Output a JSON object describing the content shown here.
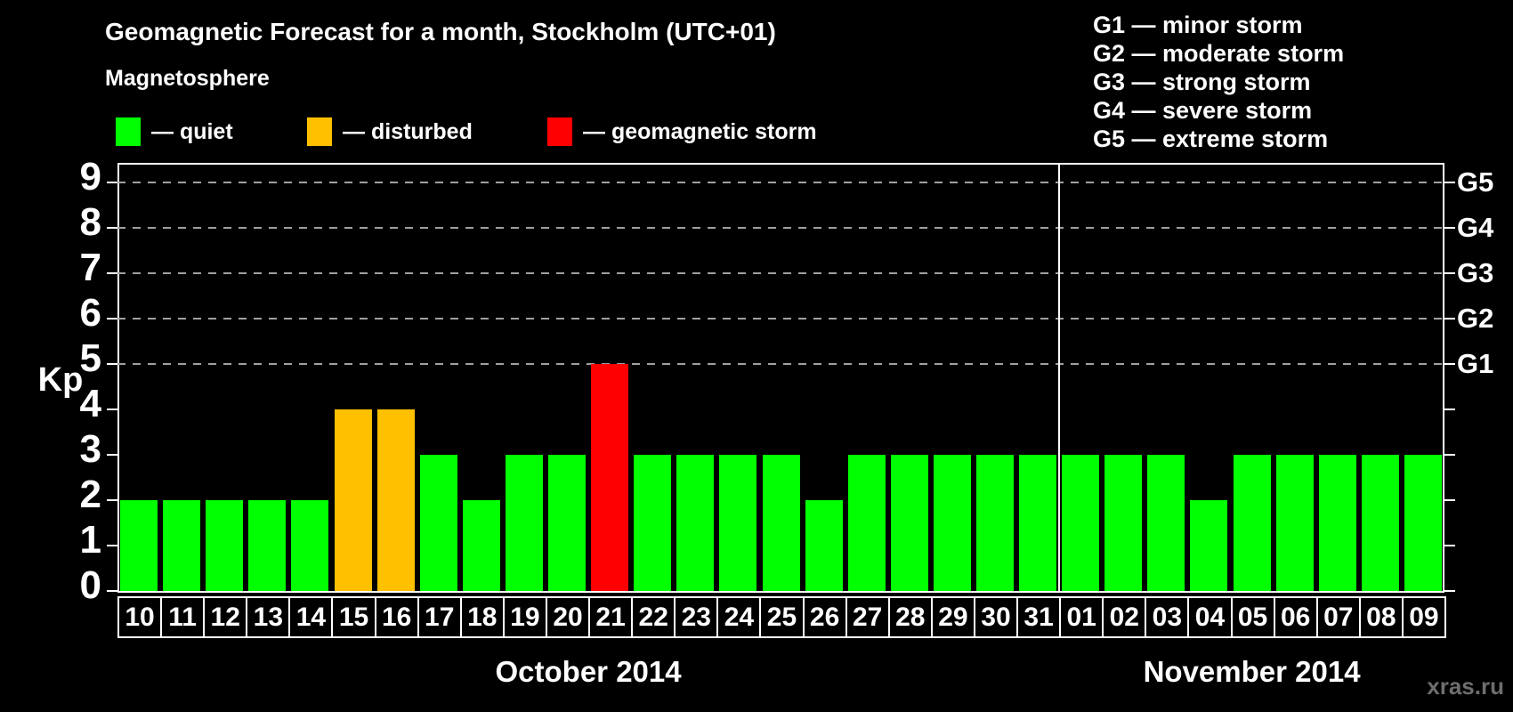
{
  "title": "Geomagnetic Forecast for a month, Stockholm (UTC+01)",
  "watermark": "xras.ru",
  "legend": {
    "heading": "Magnetosphere",
    "items": [
      {
        "key": "quiet",
        "label": "— quiet",
        "color": "#00ff00"
      },
      {
        "key": "disturbed",
        "label": "— disturbed",
        "color": "#ffc000"
      },
      {
        "key": "storm",
        "label": "— geomagnetic storm",
        "color": "#ff0000"
      }
    ]
  },
  "g_legend": [
    "G1 — minor storm",
    "G2 — moderate storm",
    "G3 — strong storm",
    "G4 — severe storm",
    "G5 — extreme storm"
  ],
  "axes": {
    "y_label": "Kp",
    "y_ticks": [
      "0",
      "1",
      "2",
      "3",
      "4",
      "5",
      "6",
      "7",
      "8",
      "9"
    ],
    "right_labels": [
      {
        "text": "G1",
        "kp": 5
      },
      {
        "text": "G2",
        "kp": 6
      },
      {
        "text": "G3",
        "kp": 7
      },
      {
        "text": "G4",
        "kp": 8
      },
      {
        "text": "G5",
        "kp": 9
      }
    ]
  },
  "chart_data": {
    "type": "bar",
    "title": "Geomagnetic Forecast for a month, Stockholm (UTC+01)",
    "xlabel": "",
    "ylabel": "Kp",
    "ylim": [
      0,
      9.4
    ],
    "grid": "horizontal dashed lines at Kp 5,6,7,8,9",
    "gridlines_at_kp": [
      5,
      6,
      7,
      8,
      9
    ],
    "legend_position": "top-left and top-right",
    "colors": {
      "quiet": "#00ff00",
      "disturbed": "#ffc000",
      "storm": "#ff0000"
    },
    "months": [
      {
        "label": "October 2014",
        "days": [
          {
            "day": "10",
            "kp": 2,
            "status": "quiet"
          },
          {
            "day": "11",
            "kp": 2,
            "status": "quiet"
          },
          {
            "day": "12",
            "kp": 2,
            "status": "quiet"
          },
          {
            "day": "13",
            "kp": 2,
            "status": "quiet"
          },
          {
            "day": "14",
            "kp": 2,
            "status": "quiet"
          },
          {
            "day": "15",
            "kp": 4,
            "status": "disturbed"
          },
          {
            "day": "16",
            "kp": 4,
            "status": "disturbed"
          },
          {
            "day": "17",
            "kp": 3,
            "status": "quiet"
          },
          {
            "day": "18",
            "kp": 2,
            "status": "quiet"
          },
          {
            "day": "19",
            "kp": 3,
            "status": "quiet"
          },
          {
            "day": "20",
            "kp": 3,
            "status": "quiet"
          },
          {
            "day": "21",
            "kp": 5,
            "status": "storm"
          },
          {
            "day": "22",
            "kp": 3,
            "status": "quiet"
          },
          {
            "day": "23",
            "kp": 3,
            "status": "quiet"
          },
          {
            "day": "24",
            "kp": 3,
            "status": "quiet"
          },
          {
            "day": "25",
            "kp": 3,
            "status": "quiet"
          },
          {
            "day": "26",
            "kp": 2,
            "status": "quiet"
          },
          {
            "day": "27",
            "kp": 3,
            "status": "quiet"
          },
          {
            "day": "28",
            "kp": 3,
            "status": "quiet"
          },
          {
            "day": "29",
            "kp": 3,
            "status": "quiet"
          },
          {
            "day": "30",
            "kp": 3,
            "status": "quiet"
          },
          {
            "day": "31",
            "kp": 3,
            "status": "quiet"
          }
        ]
      },
      {
        "label": "November 2014",
        "days": [
          {
            "day": "01",
            "kp": 3,
            "status": "quiet"
          },
          {
            "day": "02",
            "kp": 3,
            "status": "quiet"
          },
          {
            "day": "03",
            "kp": 3,
            "status": "quiet"
          },
          {
            "day": "04",
            "kp": 2,
            "status": "quiet"
          },
          {
            "day": "05",
            "kp": 3,
            "status": "quiet"
          },
          {
            "day": "06",
            "kp": 3,
            "status": "quiet"
          },
          {
            "day": "07",
            "kp": 3,
            "status": "quiet"
          },
          {
            "day": "08",
            "kp": 3,
            "status": "quiet"
          },
          {
            "day": "09",
            "kp": 3,
            "status": "quiet"
          }
        ]
      }
    ]
  }
}
